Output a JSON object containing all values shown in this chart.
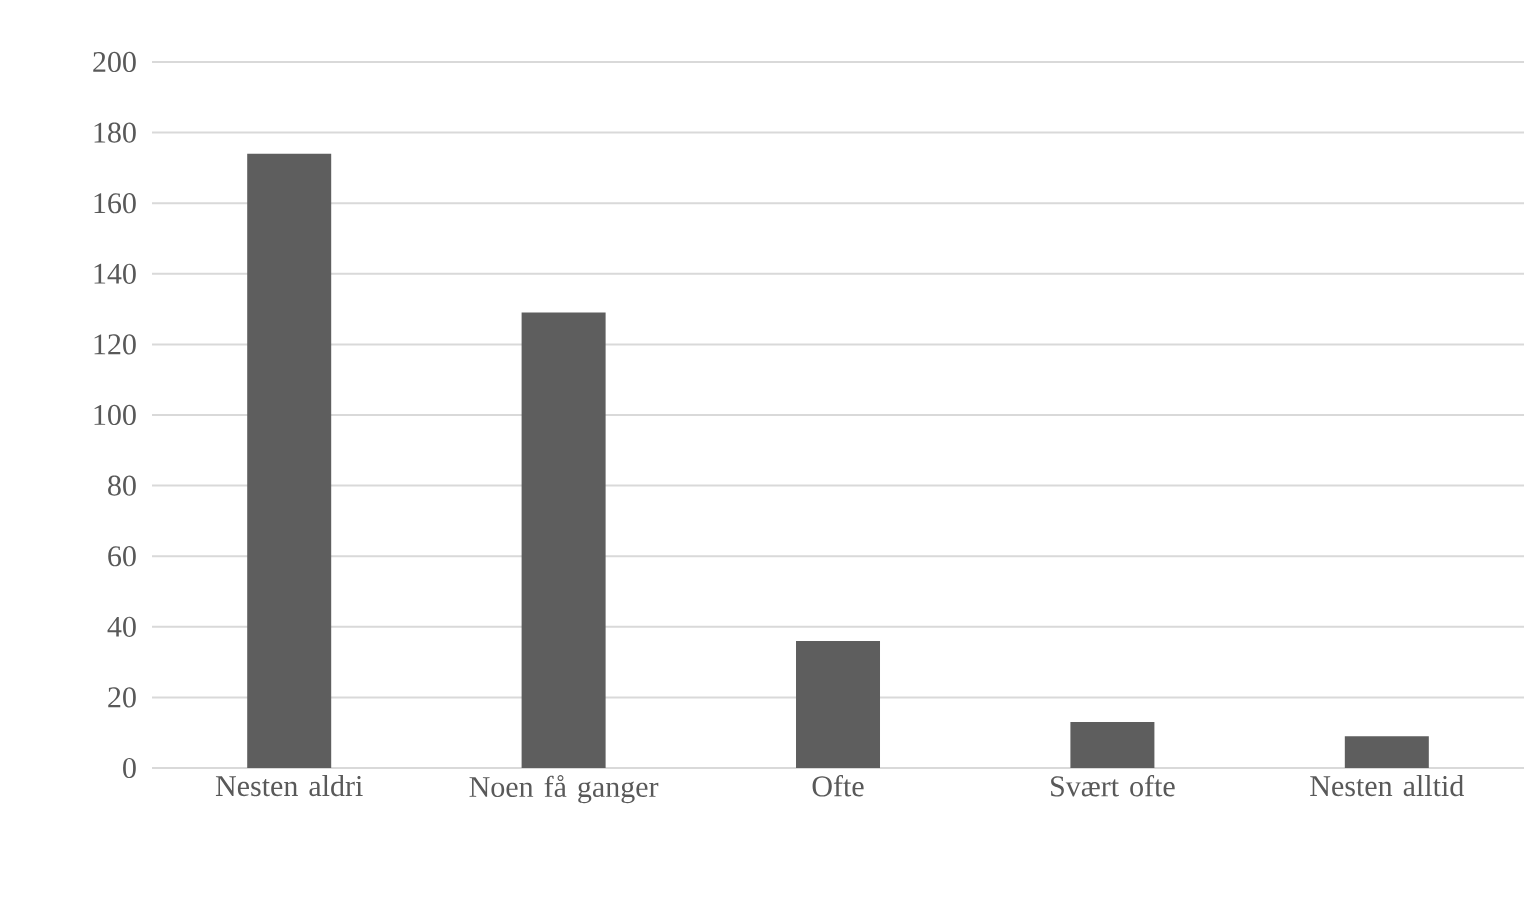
{
  "chart_data": {
    "type": "bar",
    "categories": [
      "Nesten aldri",
      "Noen få ganger",
      "Ofte",
      "Svært ofte",
      "Nesten alltid"
    ],
    "values": [
      174,
      129,
      36,
      13,
      9
    ],
    "color": "#5e5e5e",
    "ylim": [
      0,
      200
    ],
    "yticks": [
      0,
      20,
      40,
      60,
      80,
      100,
      120,
      140,
      160,
      180,
      200
    ],
    "grid": "y"
  }
}
